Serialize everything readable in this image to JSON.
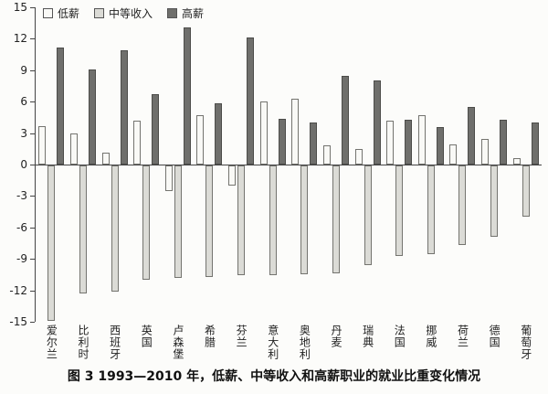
{
  "caption": "图 3  1993—2010 年，低薪、中等收入和高薪职业的就业比重变化情况",
  "chart_data": {
    "type": "bar",
    "title": "",
    "xlabel": "",
    "ylabel": "",
    "ylim": [
      -15,
      15
    ],
    "yticks": [
      15,
      12,
      9,
      6,
      3,
      0,
      -3,
      -6,
      -9,
      -12,
      -15
    ],
    "grid": false,
    "legend_position": "top-left",
    "categories": [
      "爱尔兰",
      "比利时",
      "西班牙",
      "英国",
      "卢森堡",
      "希腊",
      "芬兰",
      "意大利",
      "奥地利",
      "丹麦",
      "瑞典",
      "法国",
      "挪威",
      "荷兰",
      "德国",
      "葡萄牙"
    ],
    "series": [
      {
        "name": "低薪",
        "color": "#f9f9f6",
        "border": "#74746f",
        "values": [
          3.7,
          3.0,
          1.1,
          4.2,
          -2.4,
          4.7,
          -1.9,
          6.0,
          6.3,
          1.8,
          1.5,
          4.2,
          4.7,
          1.9,
          2.4,
          0.6
        ]
      },
      {
        "name": "中等收入",
        "color": "#dbdbd6",
        "border": "#74746f",
        "values": [
          -14.8,
          -12.2,
          -12.0,
          -10.9,
          -10.7,
          -10.6,
          -10.5,
          -10.5,
          -10.4,
          -10.3,
          -9.5,
          -8.6,
          -8.5,
          -7.6,
          -6.8,
          -4.9
        ]
      },
      {
        "name": "高薪",
        "color": "#6f6f6c",
        "border": "#4c4c49",
        "values": [
          11.2,
          9.1,
          10.9,
          6.7,
          13.1,
          5.8,
          12.1,
          4.4,
          4.0,
          8.5,
          8.0,
          4.3,
          3.6,
          5.5,
          4.3,
          4.0
        ]
      }
    ]
  }
}
